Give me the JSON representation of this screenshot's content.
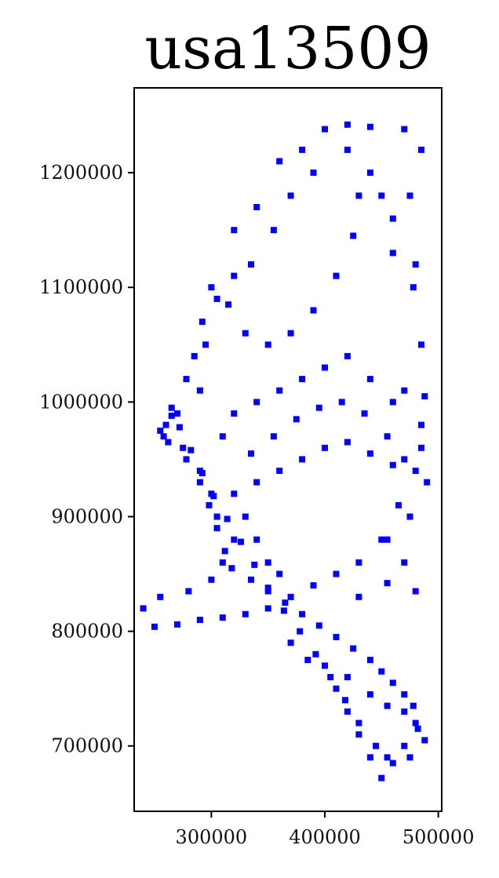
{
  "chart_data": {
    "type": "scatter",
    "title": "usa13509",
    "xlabel": "",
    "ylabel": "",
    "xlim": [
      232000,
      503000
    ],
    "ylim": [
      643000,
      1274000
    ],
    "xticks": [
      300000,
      400000,
      500000
    ],
    "yticks": [
      700000,
      800000,
      900000,
      1000000,
      1100000,
      1200000
    ],
    "xtick_labels": [
      "300000",
      "400000",
      "500000"
    ],
    "ytick_labels": [
      "700000",
      "800000",
      "900000",
      "1000000",
      "1100000",
      "1200000"
    ],
    "marker": "square",
    "grid": false,
    "colors": {
      "points": "#0000ff",
      "axis": "#000000",
      "background": "#ffffff"
    },
    "series": [
      {
        "values": [
          [
            320000,
            1150000
          ],
          [
            340000,
            1170000
          ],
          [
            360000,
            1210000
          ],
          [
            380000,
            1220000
          ],
          [
            400000,
            1238000
          ],
          [
            420000,
            1242000
          ],
          [
            440000,
            1240000
          ],
          [
            470000,
            1238000
          ],
          [
            485000,
            1220000
          ],
          [
            475000,
            1180000
          ],
          [
            480000,
            1120000
          ],
          [
            485000,
            1050000
          ],
          [
            470000,
            1010000
          ],
          [
            430000,
            1180000
          ],
          [
            450000,
            1180000
          ],
          [
            460000,
            1130000
          ],
          [
            425000,
            1145000
          ],
          [
            410000,
            1110000
          ],
          [
            390000,
            1080000
          ],
          [
            370000,
            1060000
          ],
          [
            350000,
            1050000
          ],
          [
            330000,
            1060000
          ],
          [
            315000,
            1085000
          ],
          [
            300000,
            1100000
          ],
          [
            295000,
            1050000
          ],
          [
            290000,
            1010000
          ],
          [
            270000,
            990000
          ],
          [
            260000,
            980000
          ],
          [
            275000,
            960000
          ],
          [
            290000,
            940000
          ],
          [
            300000,
            920000
          ],
          [
            305000,
            900000
          ],
          [
            320000,
            920000
          ],
          [
            340000,
            930000
          ],
          [
            360000,
            940000
          ],
          [
            380000,
            950000
          ],
          [
            400000,
            960000
          ],
          [
            420000,
            965000
          ],
          [
            440000,
            955000
          ],
          [
            460000,
            945000
          ],
          [
            480000,
            940000
          ],
          [
            490000,
            930000
          ],
          [
            475000,
            900000
          ],
          [
            450000,
            880000
          ],
          [
            430000,
            860000
          ],
          [
            410000,
            850000
          ],
          [
            390000,
            840000
          ],
          [
            370000,
            830000
          ],
          [
            350000,
            820000
          ],
          [
            330000,
            815000
          ],
          [
            310000,
            812000
          ],
          [
            290000,
            810000
          ],
          [
            270000,
            806000
          ],
          [
            250000,
            804000
          ],
          [
            240000,
            820000
          ],
          [
            255000,
            830000
          ],
          [
            280000,
            835000
          ],
          [
            300000,
            845000
          ],
          [
            310000,
            860000
          ],
          [
            320000,
            880000
          ],
          [
            330000,
            900000
          ],
          [
            340000,
            880000
          ],
          [
            350000,
            860000
          ],
          [
            360000,
            850000
          ],
          [
            370000,
            790000
          ],
          [
            385000,
            775000
          ],
          [
            400000,
            770000
          ],
          [
            420000,
            760000
          ],
          [
            440000,
            745000
          ],
          [
            455000,
            735000
          ],
          [
            470000,
            730000
          ],
          [
            480000,
            720000
          ],
          [
            488000,
            705000
          ],
          [
            475000,
            690000
          ],
          [
            460000,
            685000
          ],
          [
            450000,
            672000
          ],
          [
            440000,
            690000
          ],
          [
            430000,
            710000
          ],
          [
            420000,
            730000
          ],
          [
            410000,
            750000
          ],
          [
            430000,
            830000
          ],
          [
            455000,
            842000
          ],
          [
            480000,
            835000
          ],
          [
            470000,
            860000
          ],
          [
            455000,
            880000
          ],
          [
            465000,
            910000
          ],
          [
            485000,
            960000
          ],
          [
            460000,
            1000000
          ],
          [
            440000,
            1020000
          ],
          [
            420000,
            1040000
          ],
          [
            400000,
            1030000
          ],
          [
            380000,
            1020000
          ],
          [
            360000,
            1010000
          ],
          [
            340000,
            1000000
          ],
          [
            320000,
            990000
          ],
          [
            310000,
            970000
          ],
          [
            335000,
            955000
          ],
          [
            355000,
            970000
          ],
          [
            375000,
            985000
          ],
          [
            395000,
            995000
          ],
          [
            415000,
            1000000
          ],
          [
            435000,
            990000
          ],
          [
            455000,
            970000
          ],
          [
            470000,
            950000
          ],
          [
            485000,
            980000
          ],
          [
            488000,
            1005000
          ],
          [
            478000,
            1100000
          ],
          [
            460000,
            1160000
          ],
          [
            440000,
            1200000
          ],
          [
            420000,
            1220000
          ],
          [
            390000,
            1200000
          ],
          [
            370000,
            1180000
          ],
          [
            355000,
            1150000
          ],
          [
            335000,
            1120000
          ],
          [
            320000,
            1110000
          ],
          [
            305000,
            1090000
          ],
          [
            292000,
            1070000
          ],
          [
            285000,
            1040000
          ],
          [
            278000,
            1020000
          ],
          [
            265000,
            995000
          ],
          [
            255000,
            975000
          ],
          [
            262000,
            965000
          ],
          [
            278000,
            950000
          ],
          [
            290000,
            930000
          ],
          [
            298000,
            910000
          ],
          [
            305000,
            890000
          ],
          [
            312000,
            870000
          ],
          [
            318000,
            855000
          ],
          [
            335000,
            845000
          ],
          [
            350000,
            835000
          ],
          [
            365000,
            825000
          ],
          [
            380000,
            815000
          ],
          [
            395000,
            805000
          ],
          [
            410000,
            795000
          ],
          [
            425000,
            785000
          ],
          [
            440000,
            775000
          ],
          [
            450000,
            765000
          ],
          [
            460000,
            755000
          ],
          [
            470000,
            745000
          ],
          [
            478000,
            735000
          ],
          [
            482000,
            715000
          ],
          [
            470000,
            700000
          ],
          [
            455000,
            690000
          ],
          [
            445000,
            700000
          ],
          [
            430000,
            720000
          ],
          [
            418000,
            740000
          ],
          [
            405000,
            760000
          ],
          [
            392000,
            780000
          ],
          [
            378000,
            800000
          ],
          [
            364000,
            818000
          ],
          [
            350000,
            838000
          ],
          [
            338000,
            858000
          ],
          [
            326000,
            878000
          ],
          [
            314000,
            898000
          ],
          [
            302000,
            918000
          ],
          [
            292000,
            938000
          ],
          [
            282000,
            958000
          ],
          [
            272000,
            978000
          ],
          [
            265000,
            988000
          ],
          [
            258000,
            970000
          ]
        ]
      }
    ]
  }
}
